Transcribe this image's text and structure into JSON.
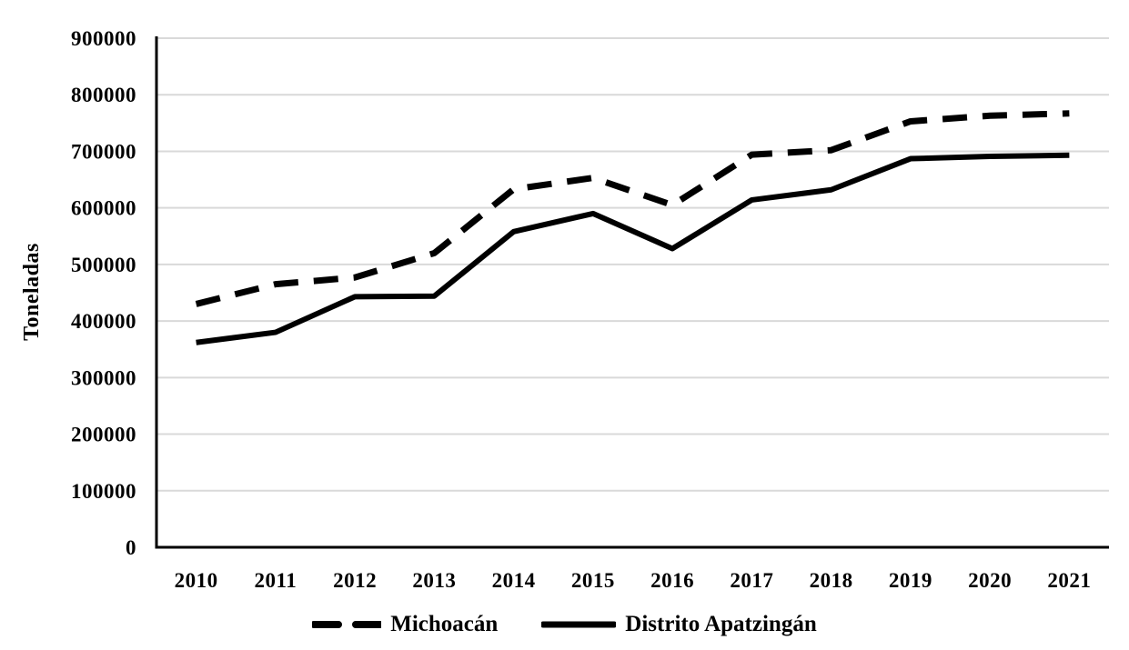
{
  "chart_data": {
    "type": "line",
    "title": "",
    "xlabel": "",
    "ylabel": "Toneladas",
    "x": [
      "2010",
      "2011",
      "2012",
      "2013",
      "2014",
      "2015",
      "2016",
      "2017",
      "2018",
      "2019",
      "2020",
      "2021"
    ],
    "ylim": [
      0,
      900000
    ],
    "y_ticks": [
      0,
      100000,
      200000,
      300000,
      400000,
      500000,
      600000,
      700000,
      800000,
      900000
    ],
    "grid": true,
    "legend_position": "bottom",
    "colors": {
      "series_color": "#000000",
      "gridline": "#d9d9d9",
      "axis": "#000000",
      "background": "#ffffff"
    },
    "series": [
      {
        "name": "Michoacán",
        "line_style": "dashed",
        "values": [
          430000,
          465000,
          477000,
          520000,
          633000,
          653000,
          605000,
          694000,
          702000,
          753000,
          763000,
          767000
        ]
      },
      {
        "name": "Distrito Apatzingán",
        "line_style": "solid",
        "values": [
          362000,
          380000,
          443000,
          444000,
          558000,
          590000,
          528000,
          614000,
          632000,
          687000,
          691000,
          693000
        ]
      }
    ]
  }
}
